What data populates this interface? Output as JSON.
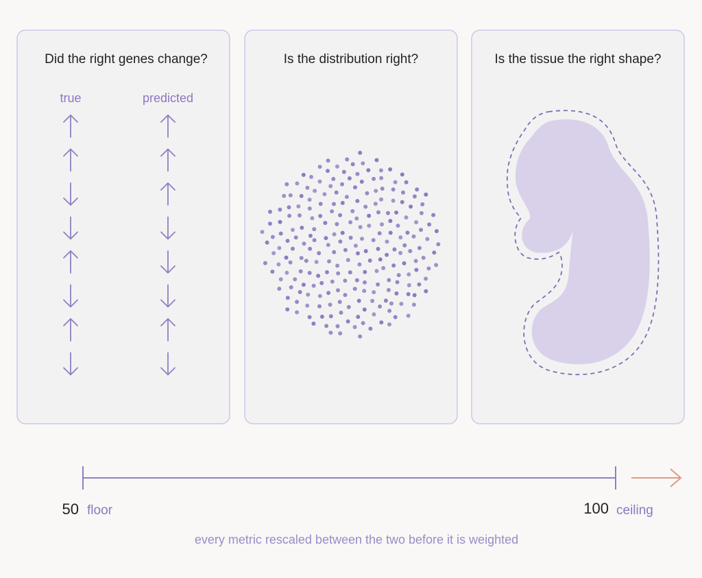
{
  "panels": [
    {
      "title": "Did the right genes change?",
      "labels": [
        "true",
        "predicted"
      ]
    },
    {
      "title": "Is the distribution right?"
    },
    {
      "title": "Is the tissue the right shape?"
    }
  ],
  "scale": {
    "low": 50,
    "low_label": "floor",
    "high": 100,
    "high_label": "ceiling",
    "caption": "every metric rescaled between the two before it is weighted"
  }
}
